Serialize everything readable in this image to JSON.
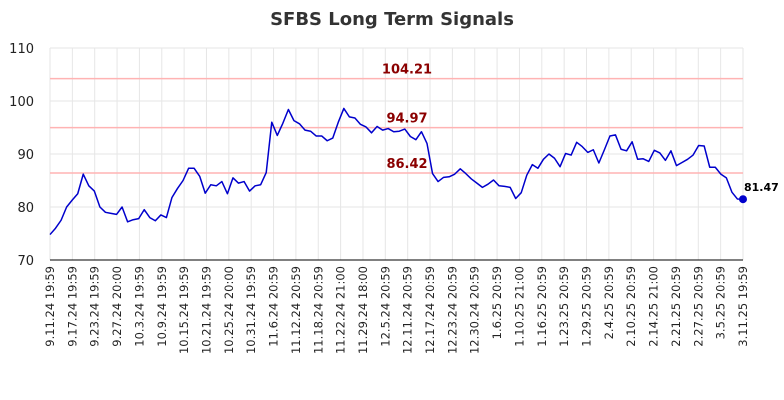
{
  "chart_data": {
    "type": "line",
    "title": "SFBS Long Term Signals",
    "ylim": [
      70,
      110
    ],
    "yticks": [
      70,
      80,
      90,
      100,
      110
    ],
    "grid": true,
    "xtick_labels": [
      "9.11.24 19:59",
      "9.17.24 19:59",
      "9.23.24 19:59",
      "9.27.24 20:00",
      "10.3.24 19:59",
      "10.9.24 19:59",
      "10.15.24 19:59",
      "10.21.24 19:59",
      "10.25.24 20:00",
      "10.31.24 19:59",
      "11.6.24 20:59",
      "11.12.24 20:59",
      "11.18.24 20:59",
      "11.22.24 21:00",
      "11.29.24 18:00",
      "12.5.24 20:59",
      "12.11.24 20:59",
      "12.17.24 20:59",
      "12.23.24 20:59",
      "12.30.24 20:59",
      "1.6.25 20:59",
      "1.10.25 21:00",
      "1.16.25 20:59",
      "1.23.25 20:59",
      "1.29.25 20:59",
      "2.4.25 20:59",
      "2.10.25 20:59",
      "2.14.25 21:00",
      "2.21.25 20:59",
      "2.27.25 20:59",
      "3.5.25 20:59",
      "3.11.25 19:59"
    ],
    "levels": [
      {
        "value": 104.21,
        "label": "104.21",
        "color": "#ffb3b3"
      },
      {
        "value": 94.97,
        "label": "94.97",
        "color": "#ffb3b3"
      },
      {
        "value": 86.42,
        "label": "86.42",
        "color": "#ffb3b3"
      }
    ],
    "line_color": "#0000cc",
    "last_value_label": "81.47",
    "series": [
      {
        "values": [
          74.8,
          76.0,
          77.5,
          80.0,
          81.3,
          82.5,
          86.2,
          84.0,
          83.0,
          80.0,
          79.0,
          78.8,
          78.6,
          80.0,
          77.2,
          77.6,
          77.8,
          79.5,
          78.0,
          77.4,
          78.5,
          78.0,
          81.8,
          83.5,
          85.0,
          87.3,
          87.3,
          85.8,
          82.6,
          84.2,
          84.0,
          84.8,
          82.5,
          85.5,
          84.5,
          84.8,
          83.0,
          84.0,
          84.2,
          86.5,
          96.0,
          93.5,
          95.8,
          98.4,
          96.3,
          95.7,
          94.5,
          94.3,
          93.4,
          93.4,
          92.5,
          93.0,
          96.0,
          98.6,
          97.0,
          96.8,
          95.6,
          95.1,
          94.0,
          95.2,
          94.5,
          94.8,
          94.2,
          94.3,
          94.7,
          93.3,
          92.7,
          94.2,
          92.0,
          86.3,
          84.8,
          85.6,
          85.7,
          86.2,
          87.2,
          86.3,
          85.3,
          84.5,
          83.7,
          84.3,
          85.1,
          84.0,
          83.9,
          83.7,
          81.6,
          82.7,
          86.0,
          88.0,
          87.3,
          89.0,
          90.0,
          89.2,
          87.6,
          90.1,
          89.8,
          92.2,
          91.4,
          90.3,
          90.8,
          88.3,
          90.8,
          93.4,
          93.6,
          90.9,
          90.6,
          92.3,
          89.0,
          89.1,
          88.6,
          90.7,
          90.2,
          88.8,
          90.6,
          87.8,
          88.4,
          89.0,
          89.8,
          91.6,
          91.5,
          87.5,
          87.5,
          86.2,
          85.5,
          82.8,
          81.5,
          81.47
        ]
      }
    ]
  }
}
